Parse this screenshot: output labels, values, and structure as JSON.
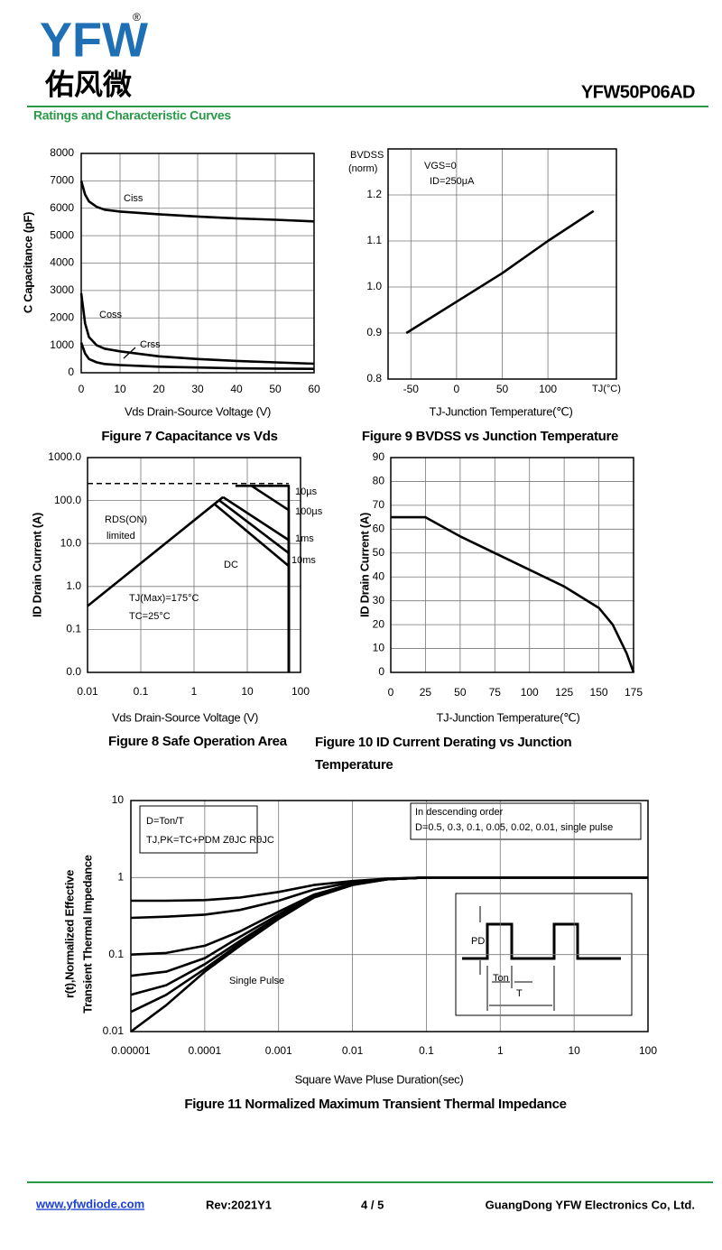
{
  "header": {
    "logo": "YFW",
    "logo_cn": "佑风微",
    "registered": "®",
    "part_number": "YFW50P06AD",
    "section": "Ratings and Characteristic Curves"
  },
  "footer": {
    "website": "www.yfwdiode.com",
    "revision": "Rev:2021Y1",
    "page": "4 / 5",
    "company": "GuangDong YFW Electronics Co, Ltd."
  },
  "chart_data": [
    {
      "type": "line",
      "title": "Figure 7 Capacitance vs Vds",
      "xlabel": "Vds Drain-Source Voltage (V)",
      "ylabel": "C Capacitance (pF)",
      "xlim": [
        0,
        60
      ],
      "xticks": [
        0,
        10,
        20,
        30,
        40,
        50,
        60
      ],
      "ylim": [
        0,
        8000
      ],
      "yticks": [
        0,
        1000,
        2000,
        3000,
        4000,
        5000,
        6000,
        7000,
        8000
      ],
      "grid": true,
      "series": [
        {
          "name": "Ciss",
          "color": "#000000",
          "x": [
            0,
            1,
            2,
            4,
            6,
            10,
            20,
            30,
            40,
            50,
            60
          ],
          "values": [
            7000,
            6500,
            6250,
            6050,
            5950,
            5880,
            5780,
            5700,
            5630,
            5580,
            5520
          ]
        },
        {
          "name": "Coss",
          "color": "#000000",
          "x": [
            0,
            1,
            2,
            4,
            6,
            10,
            20,
            30,
            40,
            50,
            60
          ],
          "values": [
            2900,
            1800,
            1300,
            1000,
            880,
            780,
            600,
            500,
            430,
            380,
            330
          ]
        },
        {
          "name": "Crss",
          "color": "#000000",
          "x": [
            0,
            1,
            2,
            4,
            6,
            10,
            20,
            30,
            40,
            50,
            60
          ],
          "values": [
            1100,
            700,
            500,
            380,
            320,
            280,
            220,
            190,
            160,
            150,
            140
          ]
        }
      ],
      "annotations": []
    },
    {
      "type": "line",
      "title": "Figure 9 BVDSS vs Junction Temperature",
      "xlabel": "TJ-Junction Temperature(℃)",
      "xlim": [
        -75,
        175
      ],
      "xticks": [
        -50,
        0,
        50,
        100
      ],
      "ylim": [
        0.8,
        1.3
      ],
      "yticks": [
        0.8,
        0.9,
        {
          "value": 1,
          "label": "1.0"
        },
        1.1,
        1.2
      ],
      "grid": true,
      "series": [
        {
          "color": "#000000",
          "x": [
            -55,
            0,
            50,
            100,
            150
          ],
          "values": [
            0.9,
            0.968,
            1.03,
            1.1,
            1.165
          ]
        }
      ],
      "annotations": [
        "BVDSS",
        "(norm)",
        "VGS=0",
        "ID=250μA",
        "TJ(°C)"
      ]
    },
    {
      "type": "line",
      "title": "Figure 8 Safe Operation Area",
      "xlabel": "Vds Drain-Source Voltage (V)",
      "ylabel": "ID Drain Current (A)",
      "xscale": "log",
      "yscale": "log",
      "xlim": [
        0.01,
        100
      ],
      "xticks": [
        0.01,
        0.1,
        1,
        10,
        100
      ],
      "ylim": [
        0.01,
        1000
      ],
      "yticks": [
        {
          "value": 1000,
          "label": "1000.0"
        },
        {
          "value": 100,
          "label": "100.0"
        },
        {
          "value": 10,
          "label": "10.0"
        },
        {
          "value": 1,
          "label": "1.0"
        },
        0.1,
        {
          "value": 0.01,
          "label": "0.0"
        }
      ],
      "grid": true,
      "series": [
        {
          "color": "#000000",
          "x": [
            0.01,
            3.5
          ],
          "values": [
            0.35,
            120
          ]
        },
        {
          "name": "10µs",
          "color": "#000000",
          "x": [
            6,
            60,
            60
          ],
          "values": [
            220,
            220,
            0.01
          ]
        },
        {
          "name": "100µs",
          "color": "#000000",
          "x": [
            12,
            60,
            60
          ],
          "values": [
            220,
            60,
            0.01
          ]
        },
        {
          "name": "1ms",
          "color": "#000000",
          "x": [
            3.5,
            60,
            60
          ],
          "values": [
            120,
            12,
            0.01
          ]
        },
        {
          "name": "10ms",
          "color": "#000000",
          "x": [
            3,
            60,
            60
          ],
          "values": [
            100,
            6,
            0.01
          ]
        },
        {
          "name": "DC",
          "color": "#000000",
          "x": [
            2.5,
            60,
            60
          ],
          "values": [
            80,
            3,
            0.01
          ]
        },
        {
          "color": "#000000",
          "dashed": true,
          "x": [
            0.01,
            60
          ],
          "values": [
            250,
            250
          ]
        }
      ],
      "annotations": [
        "RDS(ON)",
        "limited",
        "TJ(Max)=175°C",
        "TC=25°C"
      ]
    },
    {
      "type": "line",
      "title": "Figure 10 ID Current Derating vs Junction Temperature",
      "xlabel": "TJ-Junction Temperature(℃)",
      "ylabel": "ID Drain Current (A)",
      "xlim": [
        0,
        175
      ],
      "xticks": [
        0,
        25,
        50,
        75,
        100,
        125,
        150,
        175
      ],
      "ylim": [
        0,
        90
      ],
      "yticks": [
        0,
        10,
        20,
        30,
        40,
        50,
        60,
        70,
        80,
        90
      ],
      "grid": true,
      "series": [
        {
          "color": "#000000",
          "x": [
            0,
            25,
            50,
            75,
            100,
            125,
            150,
            160,
            170,
            175
          ],
          "values": [
            65,
            65,
            57,
            50,
            43,
            36,
            27,
            20,
            8,
            0
          ]
        }
      ],
      "annotations": []
    },
    {
      "type": "line",
      "title": "Figure 11 Normalized Maximum Transient Thermal Impedance",
      "xlabel": "Square Wave Pluse Duration(sec)",
      "ylabel": [
        "r(t),Normalized Effective",
        "Transient Thermal Impedance"
      ],
      "xscale": "log",
      "yscale": "log",
      "xlim": [
        1e-05,
        100
      ],
      "xticks": [
        1e-05,
        0.0001,
        0.001,
        0.01,
        0.1,
        1,
        10,
        100
      ],
      "ylim": [
        0.01,
        10
      ],
      "yticks": [
        0.01,
        0.1,
        1,
        10
      ],
      "grid": true,
      "series": [
        {
          "color": "#000000",
          "x": [
            1e-05,
            3e-05,
            0.0001,
            0.0003,
            0.001,
            0.003,
            0.01,
            0.03,
            0.1,
            1,
            10,
            100
          ],
          "values": [
            0.5,
            0.5,
            0.51,
            0.55,
            0.65,
            0.8,
            0.9,
            0.97,
            1,
            1,
            1,
            1
          ]
        },
        {
          "color": "#000000",
          "x": [
            1e-05,
            3e-05,
            0.0001,
            0.0003,
            0.001,
            0.003,
            0.01,
            0.03,
            0.1,
            1,
            10,
            100
          ],
          "values": [
            0.3,
            0.31,
            0.33,
            0.38,
            0.5,
            0.7,
            0.87,
            0.96,
            1,
            1,
            1,
            1
          ]
        },
        {
          "color": "#000000",
          "x": [
            1e-05,
            3e-05,
            0.0001,
            0.0003,
            0.001,
            0.003,
            0.01,
            0.03,
            0.1,
            1,
            10,
            100
          ],
          "values": [
            0.1,
            0.105,
            0.13,
            0.2,
            0.36,
            0.6,
            0.83,
            0.95,
            1,
            1,
            1,
            1
          ]
        },
        {
          "color": "#000000",
          "x": [
            1e-05,
            3e-05,
            0.0001,
            0.0003,
            0.001,
            0.003,
            0.01,
            0.03,
            0.1,
            1,
            10,
            100
          ],
          "values": [
            0.053,
            0.06,
            0.09,
            0.17,
            0.33,
            0.58,
            0.82,
            0.95,
            1,
            1,
            1,
            1
          ]
        },
        {
          "color": "#000000",
          "x": [
            1e-05,
            3e-05,
            0.0001,
            0.0003,
            0.001,
            0.003,
            0.01,
            0.03,
            0.1,
            1,
            10,
            100
          ],
          "values": [
            0.03,
            0.04,
            0.075,
            0.15,
            0.31,
            0.57,
            0.82,
            0.95,
            1,
            1,
            1,
            1
          ]
        },
        {
          "color": "#000000",
          "x": [
            1e-05,
            3e-05,
            0.0001,
            0.0003,
            0.001,
            0.003,
            0.01,
            0.03,
            0.1,
            1,
            10,
            100
          ],
          "values": [
            0.018,
            0.03,
            0.065,
            0.14,
            0.3,
            0.56,
            0.81,
            0.95,
            1,
            1,
            1,
            1
          ]
        },
        {
          "name": "Single Pulse",
          "color": "#000000",
          "x": [
            1e-05,
            3e-05,
            0.0001,
            0.0003,
            0.001,
            0.003,
            0.01,
            0.03,
            0.1,
            1,
            10,
            100
          ],
          "values": [
            0.01,
            0.022,
            0.06,
            0.13,
            0.29,
            0.55,
            0.8,
            0.95,
            1,
            1,
            1,
            1
          ]
        }
      ],
      "annotations": [
        "D=Ton/T",
        "TJ,PK=TC+PDM ZθJC RθJC",
        "In descending order",
        "D=0.5, 0.3, 0.1, 0.05, 0.02, 0.01, single pulse",
        "PD",
        "Ton",
        "T"
      ]
    }
  ]
}
